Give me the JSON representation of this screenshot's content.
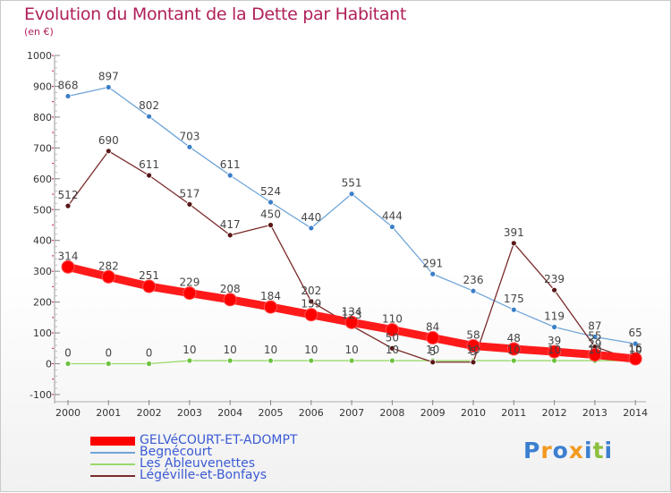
{
  "title": "Evolution du Montant de la Dette par Habitant",
  "subtitle": "(en €)",
  "brand": {
    "letters": [
      "P",
      "r",
      "o",
      "x",
      "i",
      "t",
      "i"
    ],
    "colors": [
      "#3c7fd0",
      "#f29a1f",
      "#3c7fd0",
      "#f29a1f",
      "#3c7fd0",
      "#8cbf3f",
      "#3c7fd0"
    ]
  },
  "chart_data": {
    "type": "line",
    "title": "Evolution du Montant de la Dette par Habitant",
    "subtitle": "(en €)",
    "xlabel": "",
    "ylabel": "",
    "x": [
      "2000",
      "2001",
      "2002",
      "2003",
      "2004",
      "2005",
      "2006",
      "2007",
      "2008",
      "2009",
      "2010",
      "2011",
      "2012",
      "2013",
      "2014"
    ],
    "ylim": [
      -100,
      1000
    ],
    "yticks": [
      "-100",
      "0",
      "100",
      "200",
      "300",
      "400",
      "500",
      "600",
      "700",
      "800",
      "900",
      "1000"
    ],
    "grid": false,
    "legend_position": "bottom-left",
    "series": [
      {
        "name": "GELVéCOURT-ET-ADOMPT",
        "color": "#ff0000",
        "values": [
          314,
          282,
          251,
          229,
          208,
          184,
          159,
          134,
          110,
          84,
          58,
          48,
          39,
          29,
          16
        ],
        "labels": [
          "314",
          "282",
          "251",
          "229",
          "208",
          "184",
          "159",
          "134",
          "110",
          "84",
          "58",
          "48",
          "39",
          "29",
          "16"
        ]
      },
      {
        "name": "Begnécourt",
        "color": "#6fa5d8",
        "values": [
          868,
          897,
          802,
          703,
          611,
          524,
          440,
          551,
          444,
          291,
          236,
          175,
          119,
          87,
          65
        ],
        "labels": [
          "868",
          "897",
          "802",
          "703",
          "611",
          "524",
          "440",
          "551",
          "444",
          "291",
          "236",
          "175",
          "119",
          "87",
          "65"
        ]
      },
      {
        "name": "Les Ableuvenettes",
        "color": "#99d96a",
        "values": [
          0,
          0,
          0,
          10,
          10,
          10,
          10,
          10,
          10,
          10,
          10,
          10,
          10,
          10,
          10
        ],
        "labels": [
          "0",
          "0",
          "0",
          "10",
          "10",
          "10",
          "10",
          "10",
          "10",
          "10",
          "10",
          "10",
          "10",
          "10",
          "10"
        ]
      },
      {
        "name": "Légéville-et-Bonfays",
        "color": "#7a2a2a",
        "values": [
          512,
          690,
          611,
          517,
          417,
          450,
          202,
          123,
          50,
          5,
          5,
          391,
          239,
          55,
          10
        ],
        "labels": [
          "512",
          "690",
          "611",
          "517",
          "417",
          "450",
          "202",
          "123",
          "50",
          "5",
          "5",
          "391",
          "239",
          "55",
          "10"
        ]
      }
    ]
  }
}
